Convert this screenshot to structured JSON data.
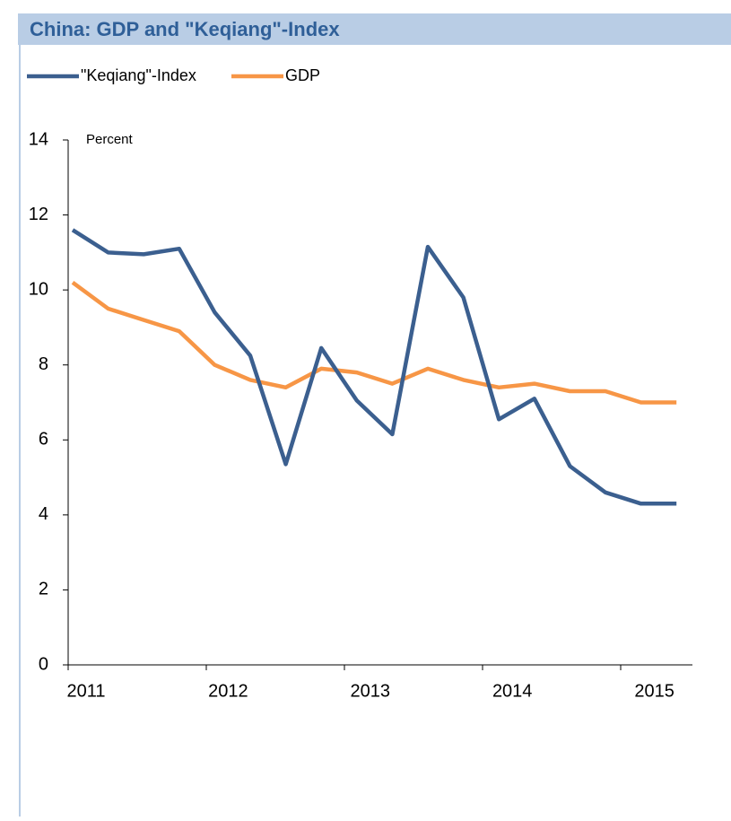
{
  "chart_data": {
    "type": "line",
    "title": "China: GDP and \"Keqiang\"-Index",
    "y_label": "Percent",
    "categories": [
      "2011",
      null,
      null,
      null,
      "2012",
      null,
      null,
      null,
      "2013",
      null,
      null,
      null,
      "2014",
      null,
      null,
      null,
      "2015",
      null
    ],
    "series": [
      {
        "name": "\"Keqiang\"-Index",
        "color": "#3b5f8f",
        "values": [
          11.6,
          11.0,
          10.95,
          11.1,
          9.4,
          8.25,
          5.35,
          8.45,
          7.05,
          6.15,
          11.15,
          9.8,
          6.55,
          7.1,
          5.3,
          4.6,
          4.3,
          4.3
        ]
      },
      {
        "name": "GDP",
        "color": "#f79646",
        "values": [
          10.2,
          9.5,
          9.2,
          8.9,
          8.0,
          7.6,
          7.4,
          7.9,
          7.8,
          7.5,
          7.9,
          7.6,
          7.4,
          7.5,
          7.3,
          7.3,
          7.0,
          7.0
        ]
      }
    ],
    "ylim": [
      0,
      14
    ],
    "yticks": [
      0,
      2,
      4,
      6,
      8,
      10,
      12,
      14
    ]
  }
}
